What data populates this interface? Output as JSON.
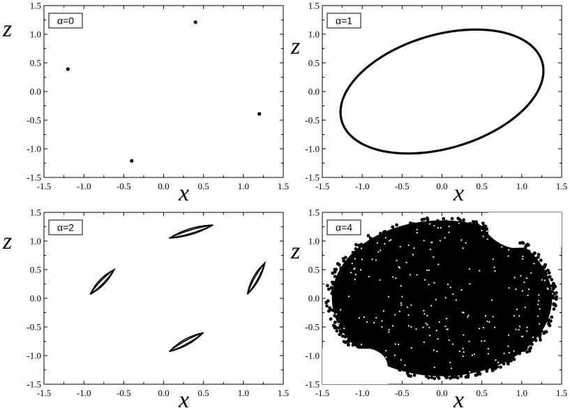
{
  "chart_data": [
    {
      "type": "scatter",
      "panel_label": "α=0",
      "xlabel": "x",
      "ylabel": "z",
      "xlim": [
        -1.5,
        1.5
      ],
      "ylim": [
        -1.5,
        1.5
      ],
      "x_ticks": [
        "-1.5",
        "-1.0",
        "-0.5",
        "0.0",
        "0.5",
        "1.0",
        "1.5"
      ],
      "y_ticks": [
        "-1.5",
        "-1.0",
        "-0.5",
        "0.0",
        "0.5",
        "1.0",
        "1.5"
      ],
      "series": [
        {
          "kind": "points",
          "x": [
            -1.2,
            -0.4,
            0.4,
            1.2
          ],
          "y": [
            0.39,
            -1.21,
            1.21,
            -0.39
          ]
        }
      ]
    },
    {
      "type": "line",
      "panel_label": "α=1",
      "xlabel": "x",
      "ylabel": "z",
      "xlim": [
        -1.5,
        1.5
      ],
      "ylim": [
        -1.5,
        1.5
      ],
      "x_ticks": [
        "-1.5",
        "-1.0",
        "-0.5",
        "0.0",
        "0.5",
        "1.0",
        "1.5"
      ],
      "y_ticks": [
        "-1.5",
        "-1.0",
        "-0.5",
        "0.0",
        "0.5",
        "1.0",
        "1.5"
      ],
      "series": [
        {
          "kind": "ellipse",
          "cx": 0.0,
          "cy": 0.0,
          "a": 1.38,
          "b": 0.94,
          "angle_deg": 32
        }
      ]
    },
    {
      "type": "line",
      "panel_label": "α=2",
      "xlabel": "x",
      "ylabel": "z",
      "xlim": [
        -1.5,
        1.5
      ],
      "ylim": [
        -1.5,
        1.5
      ],
      "x_ticks": [
        "-1.5",
        "-1.0",
        "-0.5",
        "0.0",
        "0.5",
        "1.0",
        "1.5"
      ],
      "y_ticks": [
        "-1.5",
        "-1.0",
        "-0.5",
        "0.0",
        "0.5",
        "1.0",
        "1.5"
      ],
      "series": [
        {
          "kind": "loop",
          "x": [
            -0.92,
            -0.62
          ],
          "y": [
            0.07,
            0.5
          ]
        },
        {
          "kind": "loop",
          "x": [
            0.07,
            0.62
          ],
          "y": [
            1.05,
            1.28
          ]
        },
        {
          "kind": "loop",
          "x": [
            1.05,
            1.27
          ],
          "y": [
            0.07,
            0.62
          ]
        },
        {
          "kind": "loop",
          "x": [
            0.07,
            0.5
          ],
          "y": [
            -0.93,
            -0.6
          ]
        }
      ]
    },
    {
      "type": "scatter",
      "panel_label": "α=4",
      "xlabel": "x",
      "ylabel": "z",
      "xlim": [
        -1.5,
        1.5
      ],
      "ylim": [
        -1.5,
        1.5
      ],
      "x_ticks": [
        "-1.5",
        "-1.0",
        "-0.5",
        "0.0",
        "0.5",
        "1.0",
        "1.5"
      ],
      "y_ticks": [
        "-1.5",
        "-1.0",
        "-0.5",
        "0.0",
        "0.5",
        "1.0",
        "1.5"
      ],
      "series": [
        {
          "kind": "dense_cloud",
          "x_range": [
            -1.4,
            1.42
          ],
          "y_range": [
            -1.42,
            1.38
          ]
        }
      ]
    }
  ]
}
